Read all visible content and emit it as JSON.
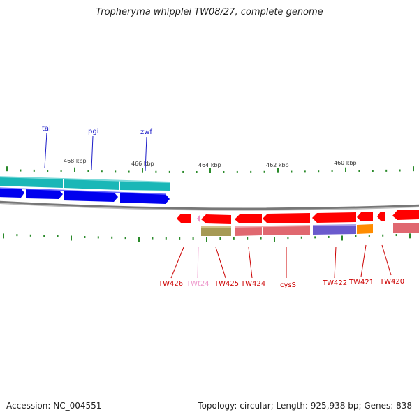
{
  "title": "Tropheryma whipplei TW08/27, complete genome",
  "footer": {
    "accession": "Accession: NC_004551",
    "summary": "Topology: circular; Length: 925,938 bp; Genes: 838"
  },
  "scale_labels": [
    "468 kbp",
    "466 kbp",
    "464 kbp",
    "462 kbp",
    "460 kbp"
  ],
  "forward_genes": [
    {
      "name": "tal",
      "color": "#1c1cc8"
    },
    {
      "name": "pgi",
      "color": "#1c1cc8"
    },
    {
      "name": "zwf",
      "color": "#1c1cc8"
    }
  ],
  "reverse_genes": [
    {
      "name": "TW426",
      "color": "#cc0000"
    },
    {
      "name": "TWt24",
      "color": "#ee99cc"
    },
    {
      "name": "TW425",
      "color": "#cc0000"
    },
    {
      "name": "TW424",
      "color": "#cc0000"
    },
    {
      "name": "cysS",
      "color": "#cc0000"
    },
    {
      "name": "TW422",
      "color": "#cc0000"
    },
    {
      "name": "TW421",
      "color": "#cc0000"
    },
    {
      "name": "TW420",
      "color": "#cc0000"
    }
  ],
  "colors": {
    "forward_cds": "#0000ee",
    "forward_feature": "#1ab7b7",
    "reverse_cds": "#ff0000",
    "reverse_feature": "#e06870",
    "backbone": "#888888",
    "ticks": "#2a8a2a"
  }
}
